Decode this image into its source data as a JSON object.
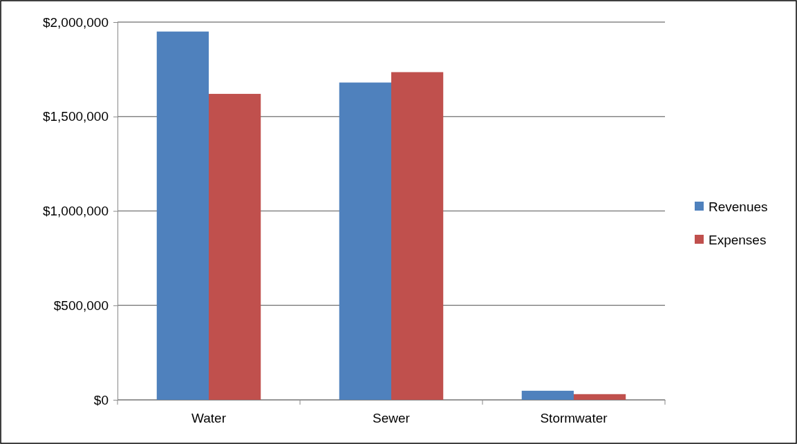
{
  "chart_data": {
    "type": "bar",
    "categories": [
      "Water",
      "Sewer",
      "Stormwater"
    ],
    "series": [
      {
        "name": "Revenues",
        "color": "#4f81bd",
        "values": [
          1950000,
          1680000,
          48000
        ]
      },
      {
        "name": "Expenses",
        "color": "#c0504d",
        "values": [
          1620000,
          1735000,
          30000
        ]
      }
    ],
    "ylim": [
      0,
      2000000
    ],
    "yticks": [
      {
        "value": 0,
        "label": "$0"
      },
      {
        "value": 500000,
        "label": "$500,000"
      },
      {
        "value": 1000000,
        "label": "$1,000,000"
      },
      {
        "value": 1500000,
        "label": "$1,500,000"
      },
      {
        "value": 2000000,
        "label": "$2,000,000"
      }
    ],
    "grid": "y",
    "legend": "right"
  }
}
